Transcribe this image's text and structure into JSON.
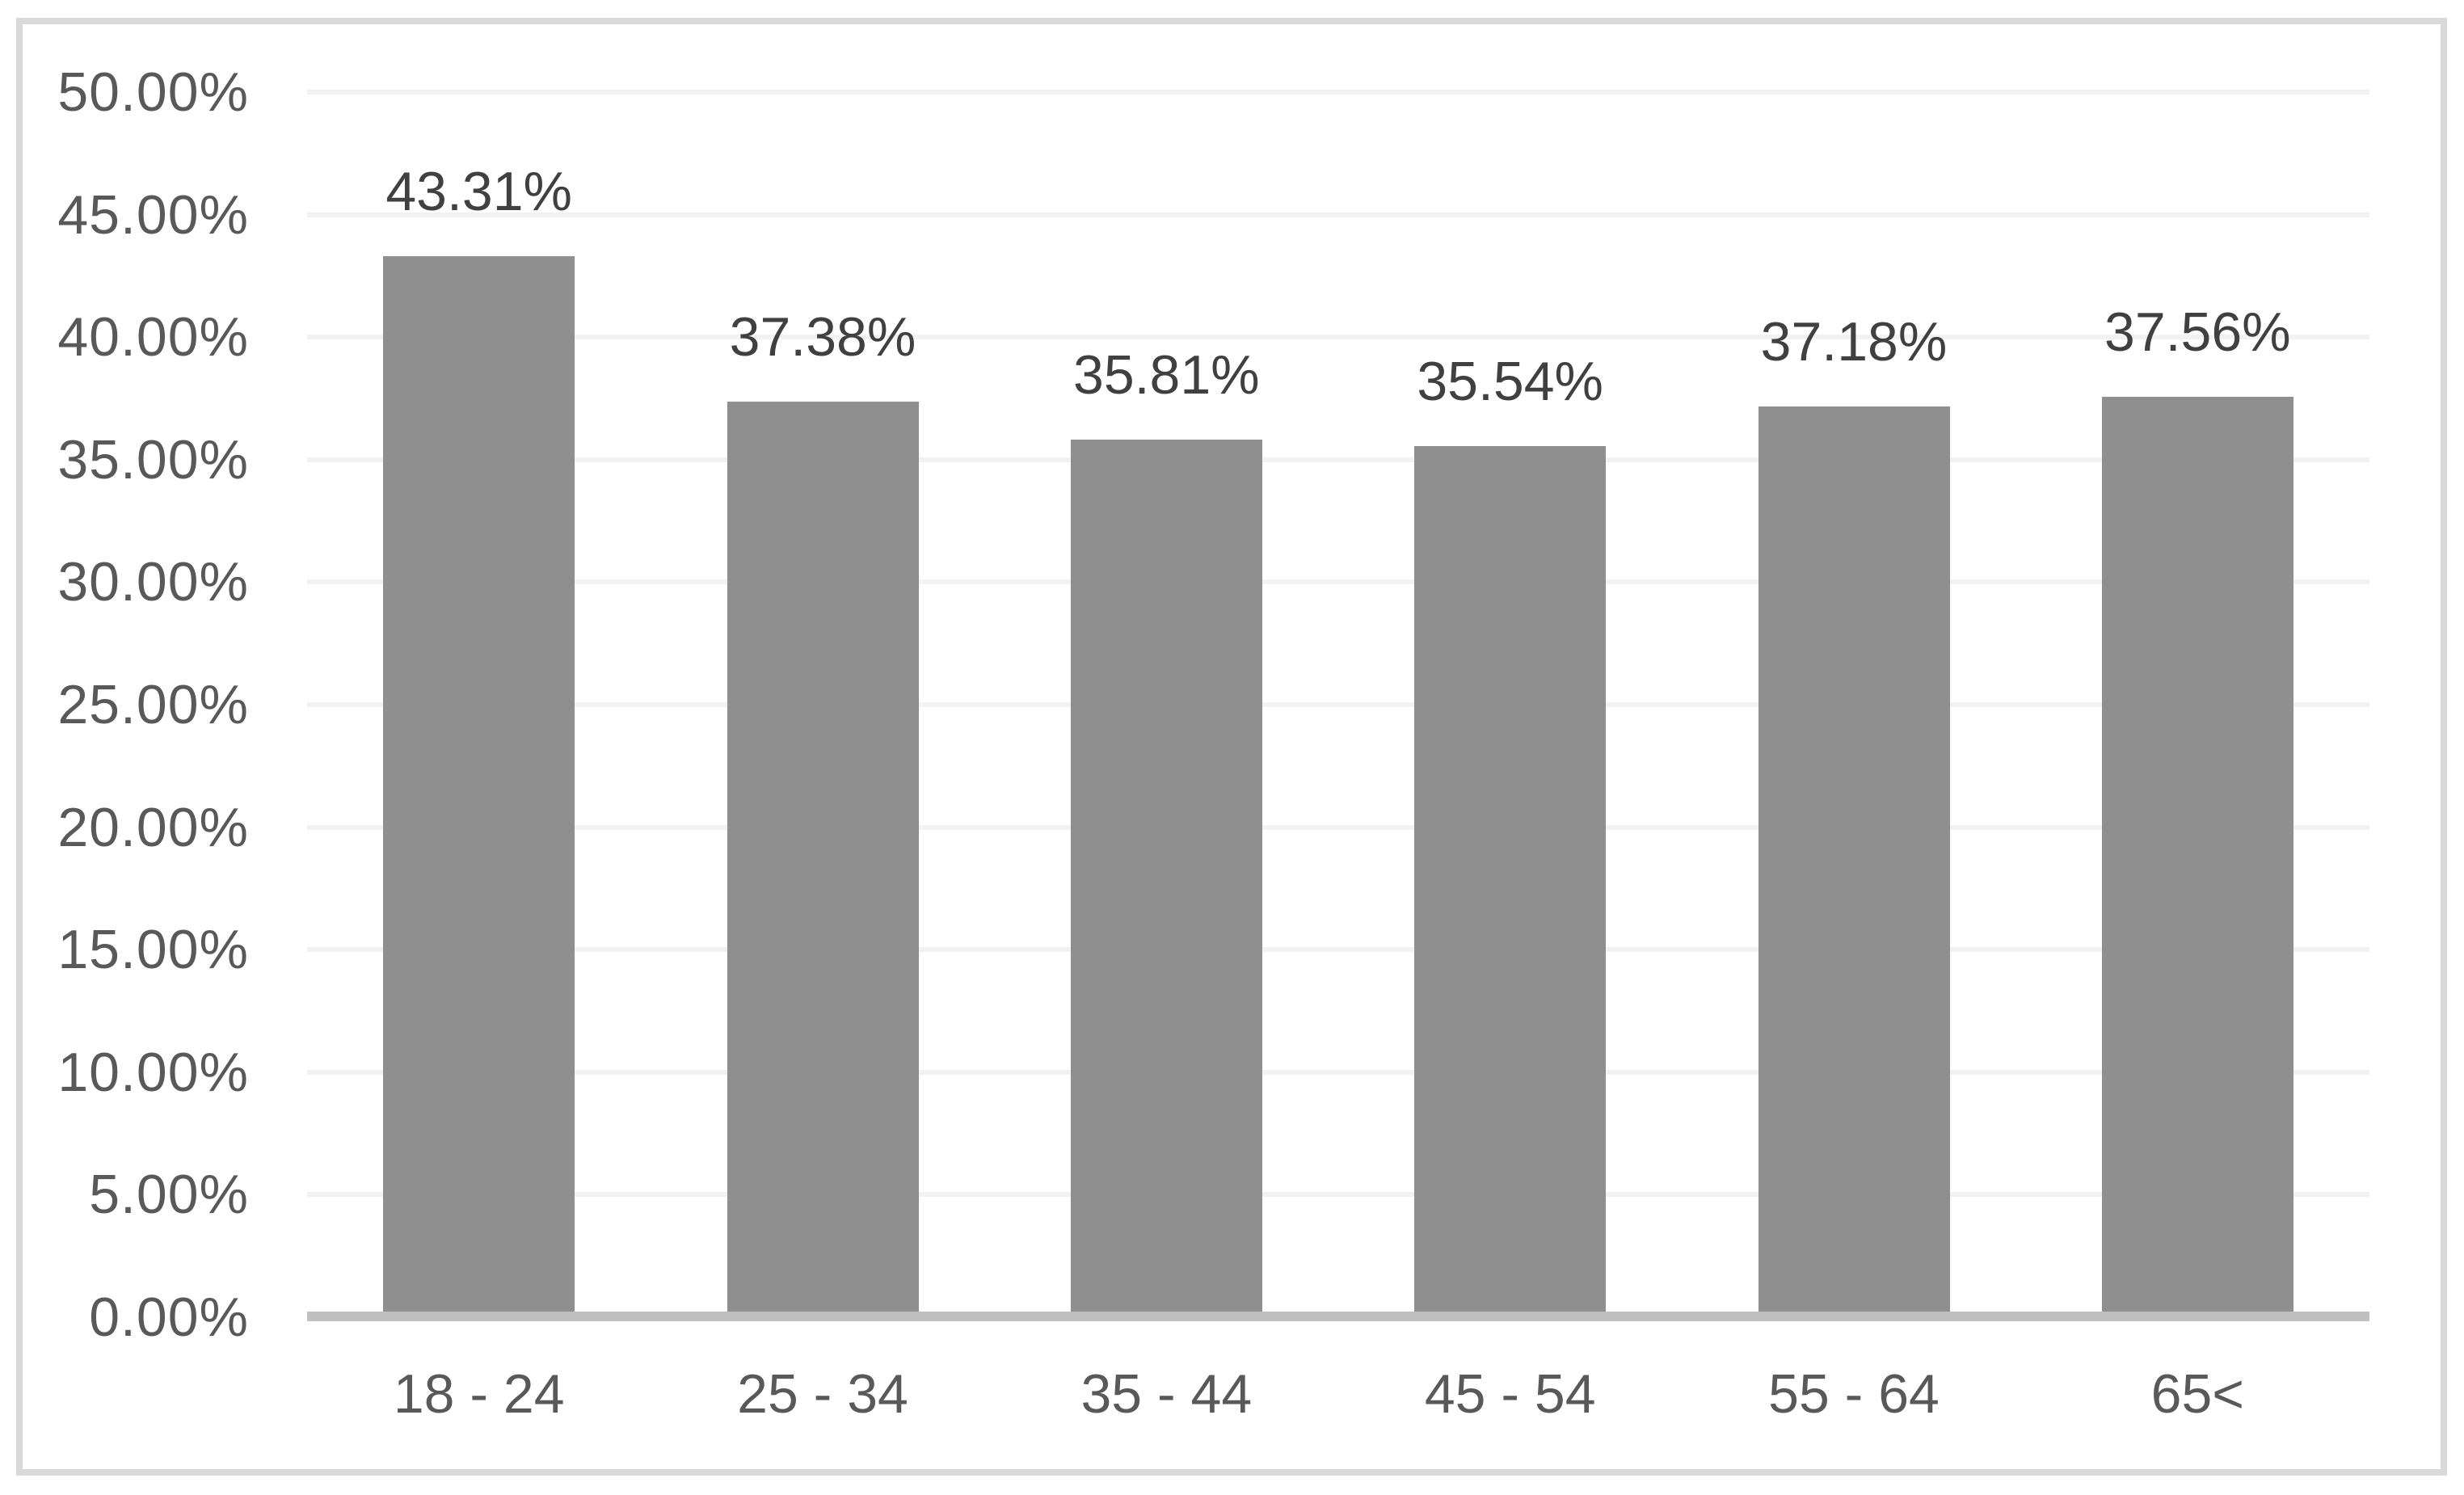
{
  "chart_data": {
    "type": "bar",
    "title": "",
    "xlabel": "",
    "ylabel": "",
    "categories": [
      "18 - 24",
      "25 - 34",
      "35 - 44",
      "45 - 54",
      "55 - 64",
      "65<"
    ],
    "values": [
      43.31,
      37.38,
      35.81,
      35.54,
      37.18,
      37.56
    ],
    "data_labels": [
      "43.31%",
      "37.38%",
      "35.81%",
      "35.54%",
      "37.18%",
      "37.56%"
    ],
    "ylim": [
      0,
      50
    ],
    "ytick_step": 5,
    "ytick_labels": [
      "0.00%",
      "5.00%",
      "10.00%",
      "15.00%",
      "20.00%",
      "25.00%",
      "30.00%",
      "35.00%",
      "40.00%",
      "45.00%",
      "50.00%"
    ],
    "grid": true,
    "legend": false,
    "colors": {
      "bar": "#8f8f8f",
      "gridline": "#f2f2f2",
      "axis_line": "#bfbfbf",
      "frame_border": "#d9d9d9",
      "tick_label": "#595959",
      "data_label": "#404040",
      "background": "#ffffff"
    }
  }
}
